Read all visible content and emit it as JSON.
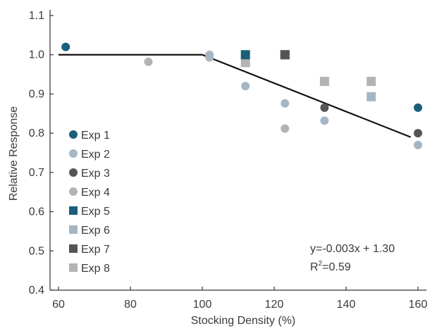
{
  "chart_data": {
    "type": "scatter",
    "xlabel": "Stocking Density (%)",
    "ylabel": "Relative Response",
    "xlim": [
      60,
      165
    ],
    "ylim": [
      0.4,
      1.1
    ],
    "xticks": [
      60,
      80,
      100,
      120,
      140,
      160
    ],
    "yticks": [
      0.4,
      0.5,
      0.6,
      0.7,
      0.8,
      0.9,
      1.0,
      1.1
    ],
    "xtick_labels": [
      "60",
      "80",
      "100",
      "120",
      "140",
      "160"
    ],
    "ytick_labels": [
      "0.4",
      "0.5",
      "0.6",
      "0.7",
      "0.8",
      "0.9",
      "1.0",
      "1.1"
    ],
    "grid": false,
    "legend_position": "left",
    "series": [
      {
        "name": "Exp 1",
        "marker": "circle",
        "color": "#1b5f7a",
        "points": [
          [
            62,
            1.02
          ],
          [
            160,
            0.865
          ]
        ]
      },
      {
        "name": "Exp 2",
        "marker": "circle",
        "color": "#a5b6c6",
        "points": [
          [
            102,
            1.0
          ],
          [
            112,
            0.92
          ],
          [
            123,
            0.876
          ],
          [
            134,
            0.832
          ],
          [
            160,
            0.77
          ]
        ]
      },
      {
        "name": "Exp 3",
        "marker": "circle",
        "color": "#555558",
        "points": [
          [
            134,
            0.865
          ],
          [
            160,
            0.8
          ]
        ]
      },
      {
        "name": "Exp 4",
        "marker": "circle",
        "color": "#b3b3b3",
        "points": [
          [
            85,
            0.982
          ],
          [
            102,
            0.993
          ],
          [
            123,
            0.812
          ]
        ]
      },
      {
        "name": "Exp 5",
        "marker": "square",
        "color": "#1b5f7a",
        "points": [
          [
            112,
            1.0
          ],
          [
            123,
            1.0
          ]
        ]
      },
      {
        "name": "Exp 6",
        "marker": "square",
        "color": "#a5b6c6",
        "points": [
          [
            147,
            0.893
          ]
        ]
      },
      {
        "name": "Exp 7",
        "marker": "square",
        "color": "#555558",
        "points": [
          [
            123,
            1.0
          ]
        ]
      },
      {
        "name": "Exp 8",
        "marker": "square",
        "color": "#b3b3b3",
        "points": [
          [
            112,
            0.98
          ],
          [
            134,
            0.932
          ],
          [
            147,
            0.932
          ]
        ]
      }
    ],
    "fit_line": {
      "color": "#111111",
      "points": [
        [
          60,
          1.0
        ],
        [
          100,
          1.0
        ],
        [
          158,
          0.79
        ]
      ]
    },
    "annotations": {
      "equation": "y=-0.003x + 1.30",
      "r_squared_prefix": "R",
      "r_squared_sup": "2",
      "r_squared_value": "=0.59"
    }
  }
}
